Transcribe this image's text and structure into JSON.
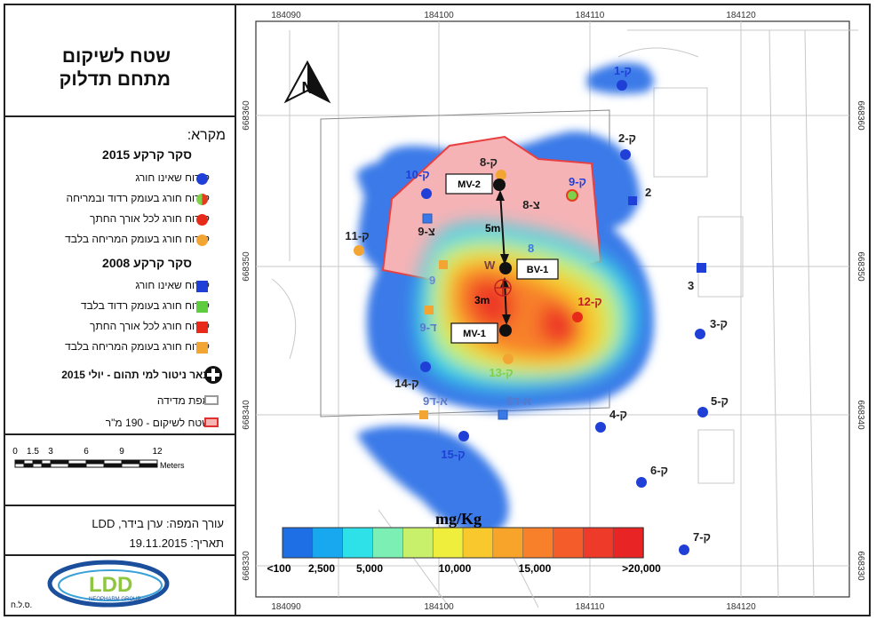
{
  "title": {
    "line1": "שטח לשיקום",
    "line2": "מתחם תדלוק"
  },
  "legend": {
    "header": "מקרא:",
    "group2015": {
      "title": "סקר קרקע 2015",
      "items": [
        {
          "label": "קידוח שאינו חורג",
          "color": "#1f3fd6",
          "color2": "#1f3fd6"
        },
        {
          "label": "קידוח חורג בעומק רדוד ובמריחה",
          "color": "#e53e1e",
          "color2": "#7fd14a"
        },
        {
          "label": "קידוח חורג לכל אורך החתך",
          "color": "#e82a1a",
          "color2": "#e82a1a"
        },
        {
          "label": "קידוח חורג בעומק המריחה בלבד",
          "color": "#f2a532",
          "color2": "#f2a532"
        }
      ]
    },
    "group2008": {
      "title": "סקר קרקע 2008",
      "items": [
        {
          "label": "קידוח שאינו חורג",
          "color": "#1f3fd6"
        },
        {
          "label": "קידוח חורג בעומק רדוד בלבד",
          "color": "#5dcc3e"
        },
        {
          "label": "קידוח חורג לכל אורך החתך",
          "color": "#e82a1a"
        },
        {
          "label": "קידוח חורג בעומק המריחה בלבד",
          "color": "#f2a532"
        }
      ]
    },
    "well": "באר ניטור למי תהום - יולי 2015",
    "survey_map": "מפת מדידה",
    "remediation": "שטח לשיקום - 190 מ\"ר"
  },
  "scale": {
    "labels": [
      "0",
      "1.5",
      "3",
      "6",
      "9",
      "12"
    ],
    "unit": "Meters"
  },
  "author": {
    "line1": "עורך המפה: ערן בידר, LDD",
    "line2": "תאריך: 19.11.2015"
  },
  "logo": {
    "text": "LDD",
    "sub": "NEOPHARM GROUP",
    "tag": "ס.ל.ח."
  },
  "axes": {
    "x_top": [
      "184090",
      "184100",
      "184110",
      "184120"
    ],
    "x_bottom": [
      "184090",
      "184100",
      "184110",
      "184120"
    ],
    "y": [
      "668360",
      "668350",
      "668340",
      "668330"
    ]
  },
  "colorbar": {
    "unit": "mg/Kg",
    "labels": [
      "<100",
      "2,500",
      "5,000",
      "10,000",
      "15,000",
      ">20,000"
    ],
    "colors": [
      "#1e6fe6",
      "#18a8f0",
      "#2ee0e8",
      "#7cf0b4",
      "#c8f06a",
      "#f0ee3c",
      "#f8c82c",
      "#f8a42a",
      "#f8802a",
      "#f45c2a",
      "#ee3a28",
      "#e82424"
    ]
  },
  "callouts": {
    "mv2": "MV-2",
    "bv1": "BV-1",
    "mv1": "MV-1",
    "d5": "5m",
    "d3": "3m"
  },
  "boreholes": [
    {
      "id": "k1",
      "label": "ק-1",
      "color": "#1f3fd6"
    },
    {
      "id": "k2",
      "label": "ק-2",
      "color": "#1f3fd6"
    },
    {
      "id": "k3",
      "label": "ק-3",
      "color": "#1f3fd6"
    },
    {
      "id": "k4",
      "label": "ק-4",
      "color": "#1f3fd6"
    },
    {
      "id": "k5",
      "label": "ק-5",
      "color": "#1f3fd6"
    },
    {
      "id": "k6",
      "label": "ק-6",
      "color": "#1f3fd6"
    },
    {
      "id": "k7",
      "label": "ק-7",
      "color": "#1f3fd6"
    },
    {
      "id": "k8",
      "label": "ק-8",
      "color": "#f2a532"
    },
    {
      "id": "k9",
      "label": "ק-9",
      "color": "#7fd14a"
    },
    {
      "id": "k10",
      "label": "ק-10",
      "color": "#1f3fd6"
    },
    {
      "id": "k11",
      "label": "ק-11",
      "color": "#f2a532"
    },
    {
      "id": "k12",
      "label": "ק-12",
      "color": "#e82a1a"
    },
    {
      "id": "k13",
      "label": "ק-13",
      "color": "#f2a532"
    },
    {
      "id": "k14",
      "label": "ק-14",
      "color": "#1f3fd6"
    },
    {
      "id": "k15",
      "label": "ק-15",
      "color": "#1f3fd6"
    }
  ],
  "labels2008": {
    "s2": "2",
    "s3": "3",
    "ts8": "8-צ",
    "ts9": "9-צ",
    "n8": "8",
    "n9": "9",
    "nw": "W",
    "d9": "9-ד",
    "a9": "9א-ד",
    "a8": "8א-ד"
  },
  "north": "N"
}
